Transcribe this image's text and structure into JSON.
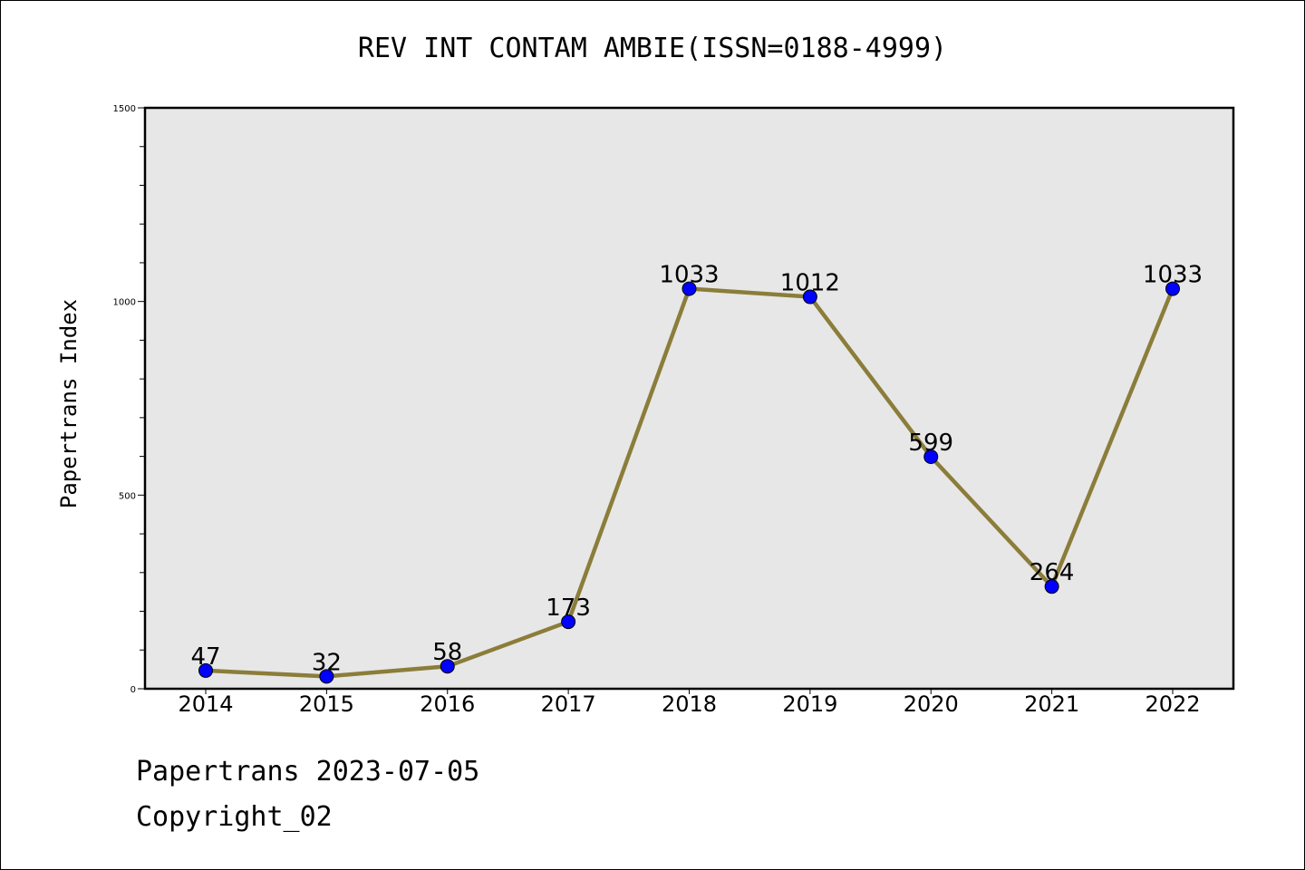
{
  "chart_data": {
    "type": "line",
    "title": "REV INT CONTAM AMBIE(ISSN=0188-4999)",
    "xlabel": "",
    "ylabel": "Papertrans Index",
    "categories": [
      "2014",
      "2015",
      "2016",
      "2017",
      "2018",
      "2019",
      "2020",
      "2021",
      "2022"
    ],
    "series": [
      {
        "values": [
          47,
          32,
          58,
          173,
          1033,
          1012,
          599,
          264,
          1033
        ],
        "line_color": "#8b7d3a",
        "marker_color": "#0000ff"
      }
    ],
    "ylim": [
      0,
      1500
    ],
    "yticks": [
      "0",
      "500",
      "1000",
      "1500"
    ],
    "grid": false,
    "plot_background": "#e7e7e7"
  },
  "footer": {
    "line1": "Papertrans 2023-07-05",
    "line2": "Copyright_02"
  }
}
